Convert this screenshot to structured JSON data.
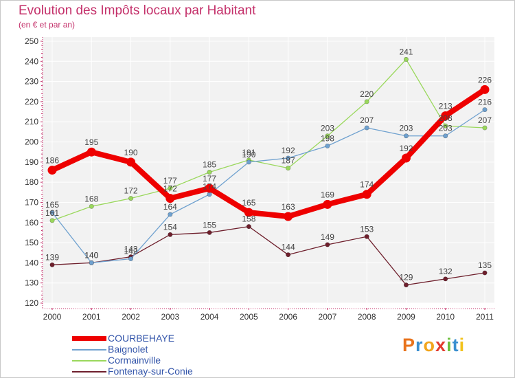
{
  "title": "Evolution des Impôts locaux par Habitant",
  "subtitle": "(en € et par an)",
  "logo_text": "Proxiti",
  "chart_data": {
    "type": "line",
    "x": [
      "2000",
      "2001",
      "2002",
      "2003",
      "2004",
      "2005",
      "2006",
      "2007",
      "2008",
      "2009",
      "2010",
      "2011"
    ],
    "ylim": [
      120,
      250
    ],
    "yticks": [
      120,
      130,
      140,
      150,
      160,
      170,
      180,
      190,
      200,
      210,
      220,
      230,
      240,
      250
    ],
    "grid": true,
    "legend_position": "bottom-left",
    "series": [
      {
        "name": "Fontenay-sur-Conie",
        "color": "#6e1f2c",
        "values": [
          139,
          140,
          143,
          154,
          155,
          158,
          144,
          149,
          153,
          129,
          132,
          135
        ]
      },
      {
        "name": "Cormainville",
        "color": "#9ad85c",
        "values": [
          161,
          168,
          172,
          177,
          185,
          191,
          187,
          203,
          220,
          241,
          208,
          207
        ]
      },
      {
        "name": "Baignolet",
        "color": "#6fa1cf",
        "values": [
          165,
          140,
          142,
          164,
          174,
          190,
          192,
          198,
          207,
          203,
          203,
          216
        ]
      },
      {
        "name": "COURBEHAYE",
        "color": "#ee0000",
        "values": [
          186,
          195,
          190,
          172,
          177,
          165,
          163,
          169,
          174,
          192,
          213,
          226
        ]
      }
    ],
    "legend_order": [
      "COURBEHAYE",
      "Baignolet",
      "Cormainville",
      "Fontenay-sur-Conie"
    ]
  }
}
